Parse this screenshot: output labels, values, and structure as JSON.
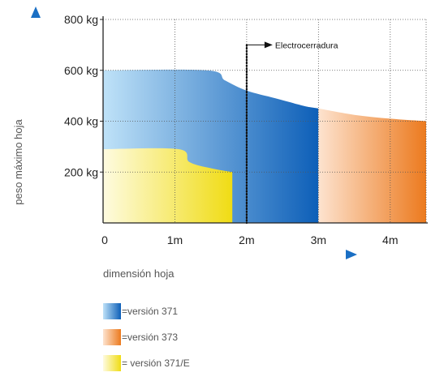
{
  "chart_data": {
    "type": "area",
    "xlabel": "dimensión hoja",
    "ylabel": "peso máximo hoja",
    "x_ticks": [
      "0",
      "1m",
      "2m",
      "3m",
      "4m"
    ],
    "y_ticks": [
      "200 kg",
      "400 kg",
      "600 kg",
      "800 kg"
    ],
    "xlim": [
      0,
      4.5
    ],
    "ylim": [
      0,
      800
    ],
    "grid": true,
    "legend_position": "bottom-left",
    "series": [
      {
        "name": "=versión 371",
        "color": "#1565c0",
        "x": [
          0,
          1.45,
          1.7,
          2.0,
          2.4,
          2.8,
          3.0
        ],
        "y": [
          600,
          600,
          560,
          520,
          490,
          460,
          450
        ]
      },
      {
        "name": "=versión 373",
        "color": "#ee7d22",
        "x": [
          3.0,
          3.5,
          4.0,
          4.5
        ],
        "y": [
          450,
          425,
          410,
          400
        ]
      },
      {
        "name": "= versión 371/E",
        "color": "#f2e01c",
        "x": [
          0,
          1.05,
          1.2,
          1.5,
          1.8
        ],
        "y": [
          290,
          290,
          240,
          215,
          200
        ]
      }
    ],
    "annotation": {
      "label": "Electrocerradura",
      "x": 2.0,
      "y_top": 700
    }
  }
}
